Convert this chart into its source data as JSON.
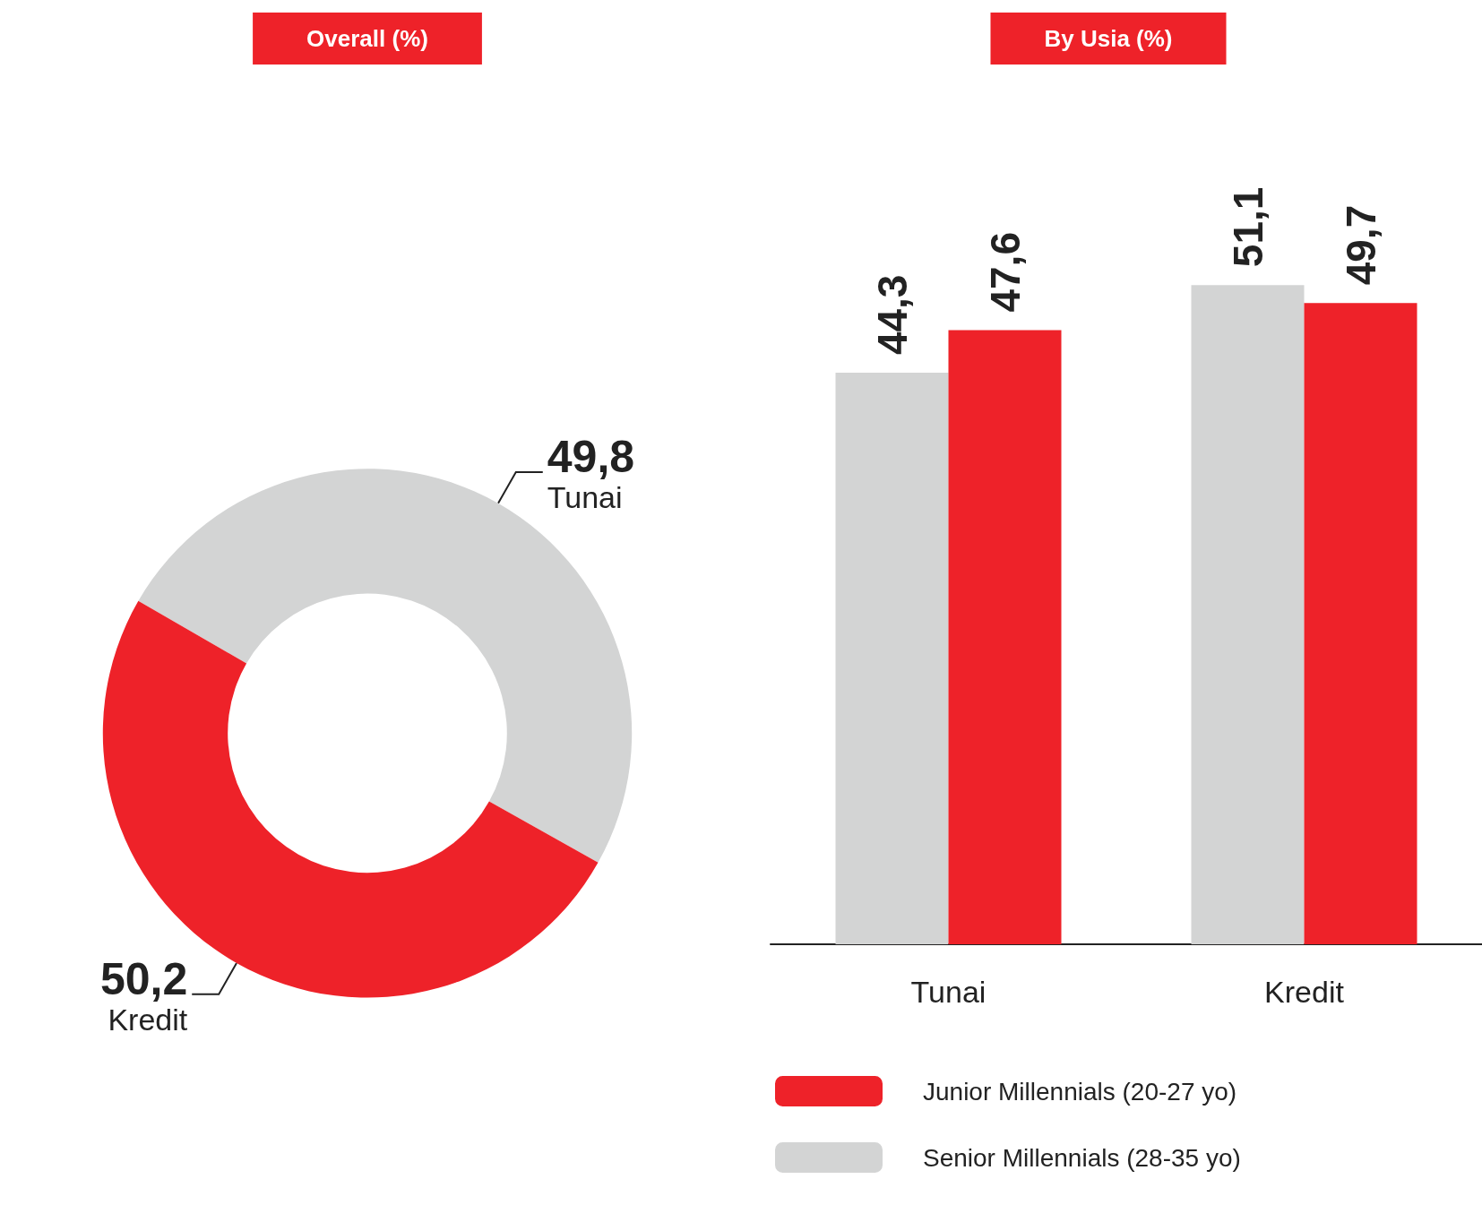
{
  "chart_data": [
    {
      "type": "donut",
      "title": "Overall (%)",
      "categories": [
        "Tunai",
        "Kredit"
      ],
      "values": [
        49.8,
        50.2
      ],
      "colors": [
        "#d3d4d4",
        "#ee2229"
      ],
      "value_labels": [
        "49,8",
        "50,2"
      ],
      "legend": false
    },
    {
      "type": "bar",
      "title": "By Usia (%)",
      "categories": [
        "Tunai",
        "Kredit"
      ],
      "legend": "bottom",
      "series": [
        {
          "name": "Senior Millennials (28-35 yo)",
          "color": "#d3d4d4",
          "values": [
            44.3,
            51.1
          ],
          "value_labels": [
            "44,3",
            "51,1"
          ]
        },
        {
          "name": "Junior Millennials (20-27 yo)",
          "color": "#ee2229",
          "values": [
            47.6,
            49.7
          ],
          "value_labels": [
            "47,6",
            "49,7"
          ]
        }
      ]
    }
  ]
}
